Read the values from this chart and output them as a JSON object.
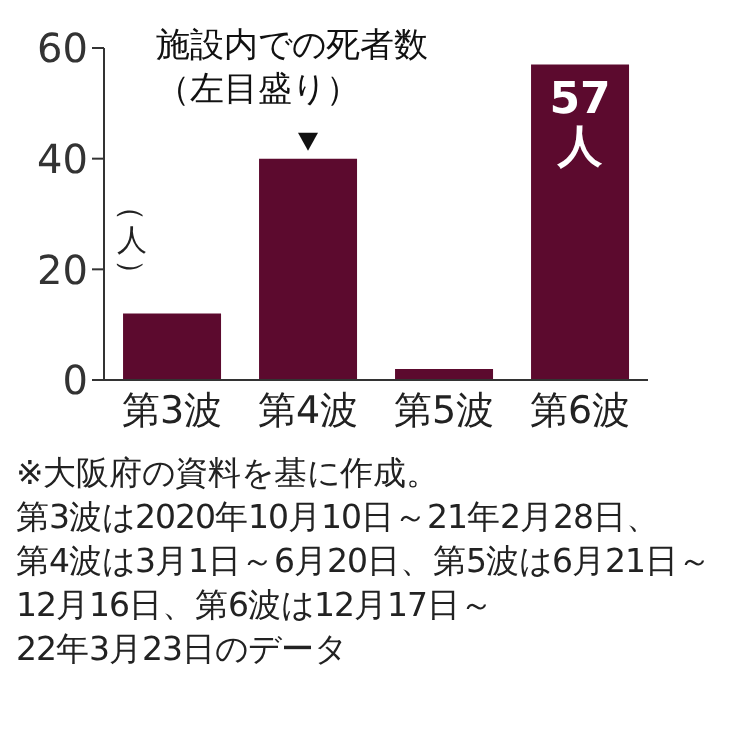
{
  "chart_data": {
    "type": "bar",
    "categories": [
      "第3波",
      "第4波",
      "第5波",
      "第6波"
    ],
    "values": [
      12,
      40,
      2,
      57
    ],
    "color": "#5c0a2e",
    "ylabel": "（人）",
    "ylim": [
      0,
      60
    ],
    "yticks": [
      0,
      20,
      40,
      60
    ],
    "grid": false,
    "value_labels": [
      null,
      null,
      null,
      "57人"
    ],
    "annotations": [
      {
        "text": "施設内での死者数（左目盛り）",
        "x": "第4波",
        "y": 40
      },
      "※大阪府の資料を基に作成。第3波は2020年10月10日～21年2月28日、第4波は3月1日～6月20日、第5波は6月21日～12月16日、第6波は12月17日～22年3月23日のデータ"
    ]
  }
}
